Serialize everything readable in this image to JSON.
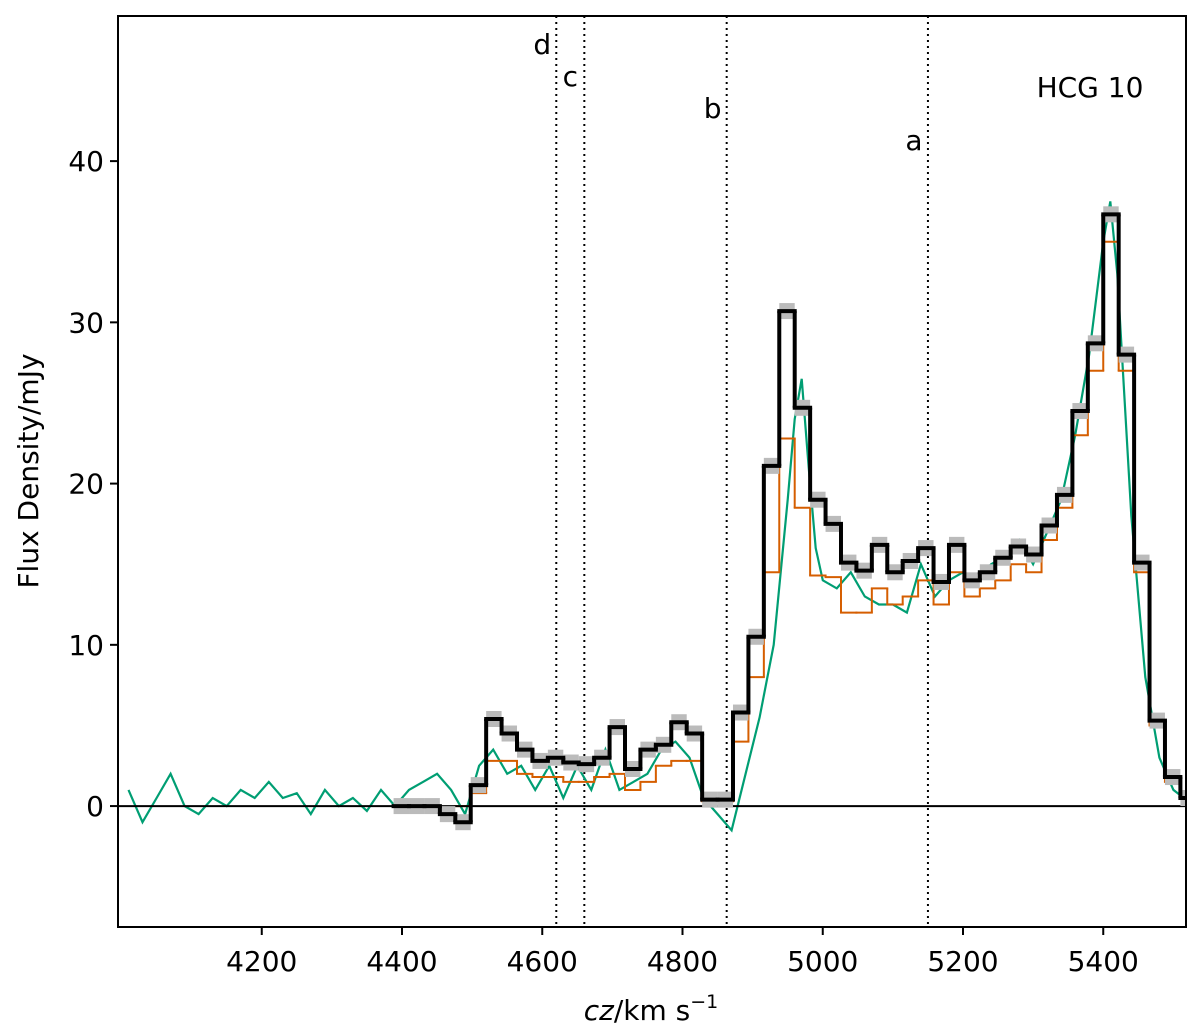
{
  "chart_data": {
    "type": "line",
    "xlabel": {
      "var": "cz",
      "unit": "/km s",
      "exp": "−1"
    },
    "ylabel": "Flux Density/mJy",
    "annotation": "HCG 10",
    "xlim": [
      3995,
      5518
    ],
    "ylim": [
      -7.5,
      49
    ],
    "xticks": [
      4200,
      4400,
      4600,
      4800,
      5000,
      5200,
      5400
    ],
    "yticks": [
      0,
      10,
      20,
      30,
      40
    ],
    "hline": 0,
    "vlines": [
      {
        "label": "a",
        "x": 5150
      },
      {
        "label": "b",
        "x": 4863
      },
      {
        "label": "c",
        "x": 4660
      },
      {
        "label": "d",
        "x": 4620
      }
    ],
    "series": [
      {
        "type": "line",
        "color": "#009e73",
        "x": [
          4010,
          4030,
          4050,
          4070,
          4090,
          4110,
          4130,
          4150,
          4170,
          4190,
          4210,
          4230,
          4250,
          4270,
          4290,
          4310,
          4330,
          4350,
          4370,
          4390,
          4410,
          4430,
          4450,
          4470,
          4490,
          4510,
          4530,
          4550,
          4570,
          4590,
          4610,
          4630,
          4650,
          4670,
          4690,
          4710,
          4730,
          4750,
          4770,
          4790,
          4810,
          4830,
          4850,
          4870,
          4890,
          4910,
          4930,
          4950,
          4960,
          4970,
          4980,
          4990,
          5000,
          5020,
          5040,
          5060,
          5080,
          5100,
          5120,
          5140,
          5160,
          5180,
          5200,
          5220,
          5240,
          5260,
          5280,
          5300,
          5320,
          5340,
          5360,
          5380,
          5400,
          5410,
          5420,
          5440,
          5460,
          5480,
          5500,
          5515
        ],
        "values": [
          1.0,
          -1.0,
          0.5,
          2.0,
          0.0,
          -0.5,
          0.5,
          0,
          1.0,
          0.5,
          1.5,
          0.5,
          0.8,
          -0.5,
          1.0,
          0,
          0.5,
          -0.3,
          1.0,
          0,
          1.0,
          1.5,
          2.0,
          1.0,
          -0.5,
          2.5,
          3.5,
          2.0,
          2.5,
          1.0,
          2.5,
          0.5,
          2.5,
          1.0,
          3.5,
          1.0,
          1.5,
          2.0,
          3.5,
          4.0,
          3.0,
          0.5,
          -0.5,
          -1.5,
          2.0,
          5.5,
          10.0,
          19.0,
          24.0,
          26.5,
          21.0,
          16.0,
          14.0,
          13.5,
          14.5,
          13.0,
          12.5,
          12.5,
          12.0,
          15.0,
          13.0,
          14.0,
          14.5,
          14.0,
          15.0,
          15.5,
          16.5,
          15.0,
          17.0,
          19.0,
          23.0,
          28.0,
          35.0,
          37.5,
          33.0,
          18.0,
          8.0,
          3.0,
          1.0,
          0.5
        ]
      },
      {
        "type": "step",
        "color": "#d55e00",
        "bins": [
          4388,
          4410,
          4432,
          4454,
          4476,
          4498,
          4520,
          4542,
          4564,
          4586,
          4608,
          4630,
          4652,
          4674,
          4696,
          4718,
          4740,
          4762,
          4784,
          4806,
          4828,
          4850,
          4872,
          4894,
          4916,
          4938,
          4960,
          4982,
          5004,
          5026,
          5048,
          5070,
          5092,
          5114,
          5136,
          5158,
          5180,
          5202,
          5224,
          5246,
          5268,
          5290,
          5312,
          5334,
          5356,
          5378,
          5400,
          5422,
          5444,
          5466,
          5488,
          5510,
          5532
        ],
        "values": [
          null,
          null,
          null,
          null,
          0,
          0.8,
          2.8,
          2.8,
          2.0,
          1.8,
          1.8,
          1.5,
          1.5,
          1.8,
          2.0,
          1.0,
          1.5,
          2.5,
          2.8,
          2.8,
          0.3,
          0.3,
          4.0,
          8.0,
          14.5,
          22.8,
          18.5,
          14.3,
          14.2,
          12.0,
          12.0,
          13.5,
          12.5,
          13.0,
          14.0,
          12.5,
          14.5,
          13.0,
          13.5,
          14.0,
          15.0,
          14.5,
          16.5,
          18.5,
          23.0,
          27.0,
          35.0,
          27.0,
          14.5,
          5.0,
          1.5,
          0.5
        ]
      },
      {
        "type": "step",
        "color": "#000000",
        "band": "#bbbbbb",
        "bins": [
          4388,
          4410,
          4432,
          4454,
          4476,
          4498,
          4520,
          4542,
          4564,
          4586,
          4608,
          4630,
          4652,
          4674,
          4696,
          4718,
          4740,
          4762,
          4784,
          4806,
          4828,
          4850,
          4872,
          4894,
          4916,
          4938,
          4960,
          4982,
          5004,
          5026,
          5048,
          5070,
          5092,
          5114,
          5136,
          5158,
          5180,
          5202,
          5224,
          5246,
          5268,
          5290,
          5312,
          5334,
          5356,
          5378,
          5400,
          5422,
          5444,
          5466,
          5488,
          5510,
          5532
        ],
        "values": [
          0,
          0,
          0,
          -0.5,
          -1.0,
          1.3,
          5.4,
          4.5,
          3.5,
          2.8,
          3.0,
          2.7,
          2.6,
          3.0,
          4.9,
          2.3,
          3.5,
          3.8,
          5.2,
          4.5,
          0.4,
          0.4,
          5.8,
          10.5,
          21.1,
          30.7,
          24.7,
          19.0,
          17.5,
          15.1,
          14.6,
          16.2,
          14.5,
          15.2,
          16.0,
          13.9,
          16.2,
          14.0,
          14.5,
          15.4,
          16.1,
          15.6,
          17.4,
          19.3,
          24.5,
          28.7,
          36.7,
          28.0,
          15.1,
          5.3,
          1.8,
          0.5
        ]
      }
    ]
  }
}
